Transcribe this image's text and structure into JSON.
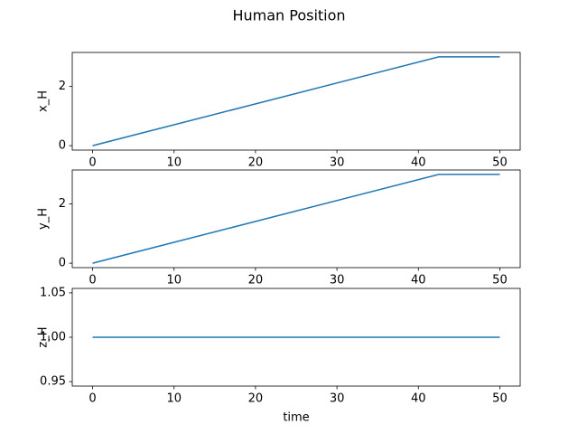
{
  "title": "Human Position",
  "chart_data": [
    {
      "type": "line",
      "ylabel": "x_H",
      "x": [
        0,
        42.5,
        50
      ],
      "values": [
        0,
        3,
        3
      ],
      "color": "#1f77b4",
      "xlim": [
        -2.5,
        52.5
      ],
      "xticks": [
        0,
        10,
        20,
        30,
        40,
        50
      ],
      "ylim": [
        -0.15,
        3.15
      ],
      "yticks": [
        0,
        2
      ]
    },
    {
      "type": "line",
      "ylabel": "y_H",
      "x": [
        0,
        42.5,
        50
      ],
      "values": [
        0,
        3,
        3
      ],
      "color": "#1f77b4",
      "xlim": [
        -2.5,
        52.5
      ],
      "xticks": [
        0,
        10,
        20,
        30,
        40,
        50
      ],
      "ylim": [
        -0.15,
        3.15
      ],
      "yticks": [
        0,
        2
      ]
    },
    {
      "type": "line",
      "ylabel": "z_H",
      "xlabel": "time",
      "x": [
        0,
        42.5,
        50
      ],
      "values": [
        1,
        1,
        1
      ],
      "color": "#1f77b4",
      "xlim": [
        -2.5,
        52.5
      ],
      "xticks": [
        0,
        10,
        20,
        30,
        40,
        50
      ],
      "ylim": [
        0.945,
        1.055
      ],
      "yticks": [
        0.95,
        {
          "value": 1,
          "label": "1.00"
        },
        1.05
      ]
    }
  ]
}
